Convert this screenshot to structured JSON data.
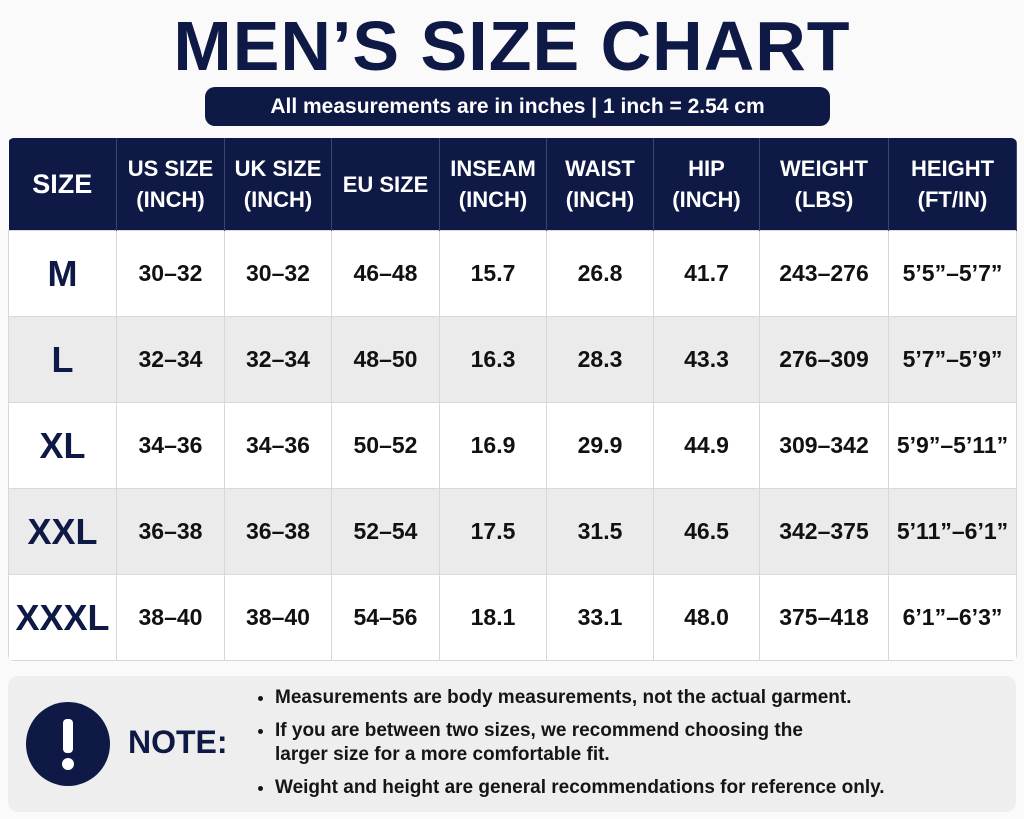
{
  "header": {
    "title": "MEN’S SIZE CHART",
    "subtitle": "All measurements are in inches | 1 inch = 2.54 cm"
  },
  "table": {
    "columns": [
      [
        "SIZE"
      ],
      [
        "US SIZE",
        "(INCH)"
      ],
      [
        "UK SIZE",
        "(INCH)"
      ],
      [
        "EU SIZE"
      ],
      [
        "INSEAM",
        "(INCH)"
      ],
      [
        "WAIST",
        "(INCH)"
      ],
      [
        "HIP",
        "(INCH)"
      ],
      [
        "WEIGHT",
        "(LBS)"
      ],
      [
        "HEIGHT",
        "(FT/IN)"
      ]
    ],
    "rows": [
      [
        "M",
        "30–32",
        "30–32",
        "46–48",
        "15.7",
        "26.8",
        "41.7",
        "243–276",
        "5’5”–5’7”"
      ],
      [
        "L",
        "32–34",
        "32–34",
        "48–50",
        "16.3",
        "28.3",
        "43.3",
        "276–309",
        "5’7”–5’9”"
      ],
      [
        "XL",
        "34–36",
        "34–36",
        "50–52",
        "16.9",
        "29.9",
        "44.9",
        "309–342",
        "5’9”–5’11”"
      ],
      [
        "XXL",
        "36–38",
        "36–38",
        "52–54",
        "17.5",
        "31.5",
        "46.5",
        "342–375",
        "5’11”–6’1”"
      ],
      [
        "XXXL",
        "38–40",
        "38–40",
        "54–56",
        "18.1",
        "33.1",
        "48.0",
        "375–418",
        "6’1”–6’3”"
      ]
    ]
  },
  "note": {
    "label": "NOTE:",
    "items": [
      "Measurements are body measurements, not the actual garment.",
      "If you are between two sizes, we recommend choosing the larger size for a more comfortable fit.",
      "Weight and height are general recommendations for reference only."
    ]
  }
}
